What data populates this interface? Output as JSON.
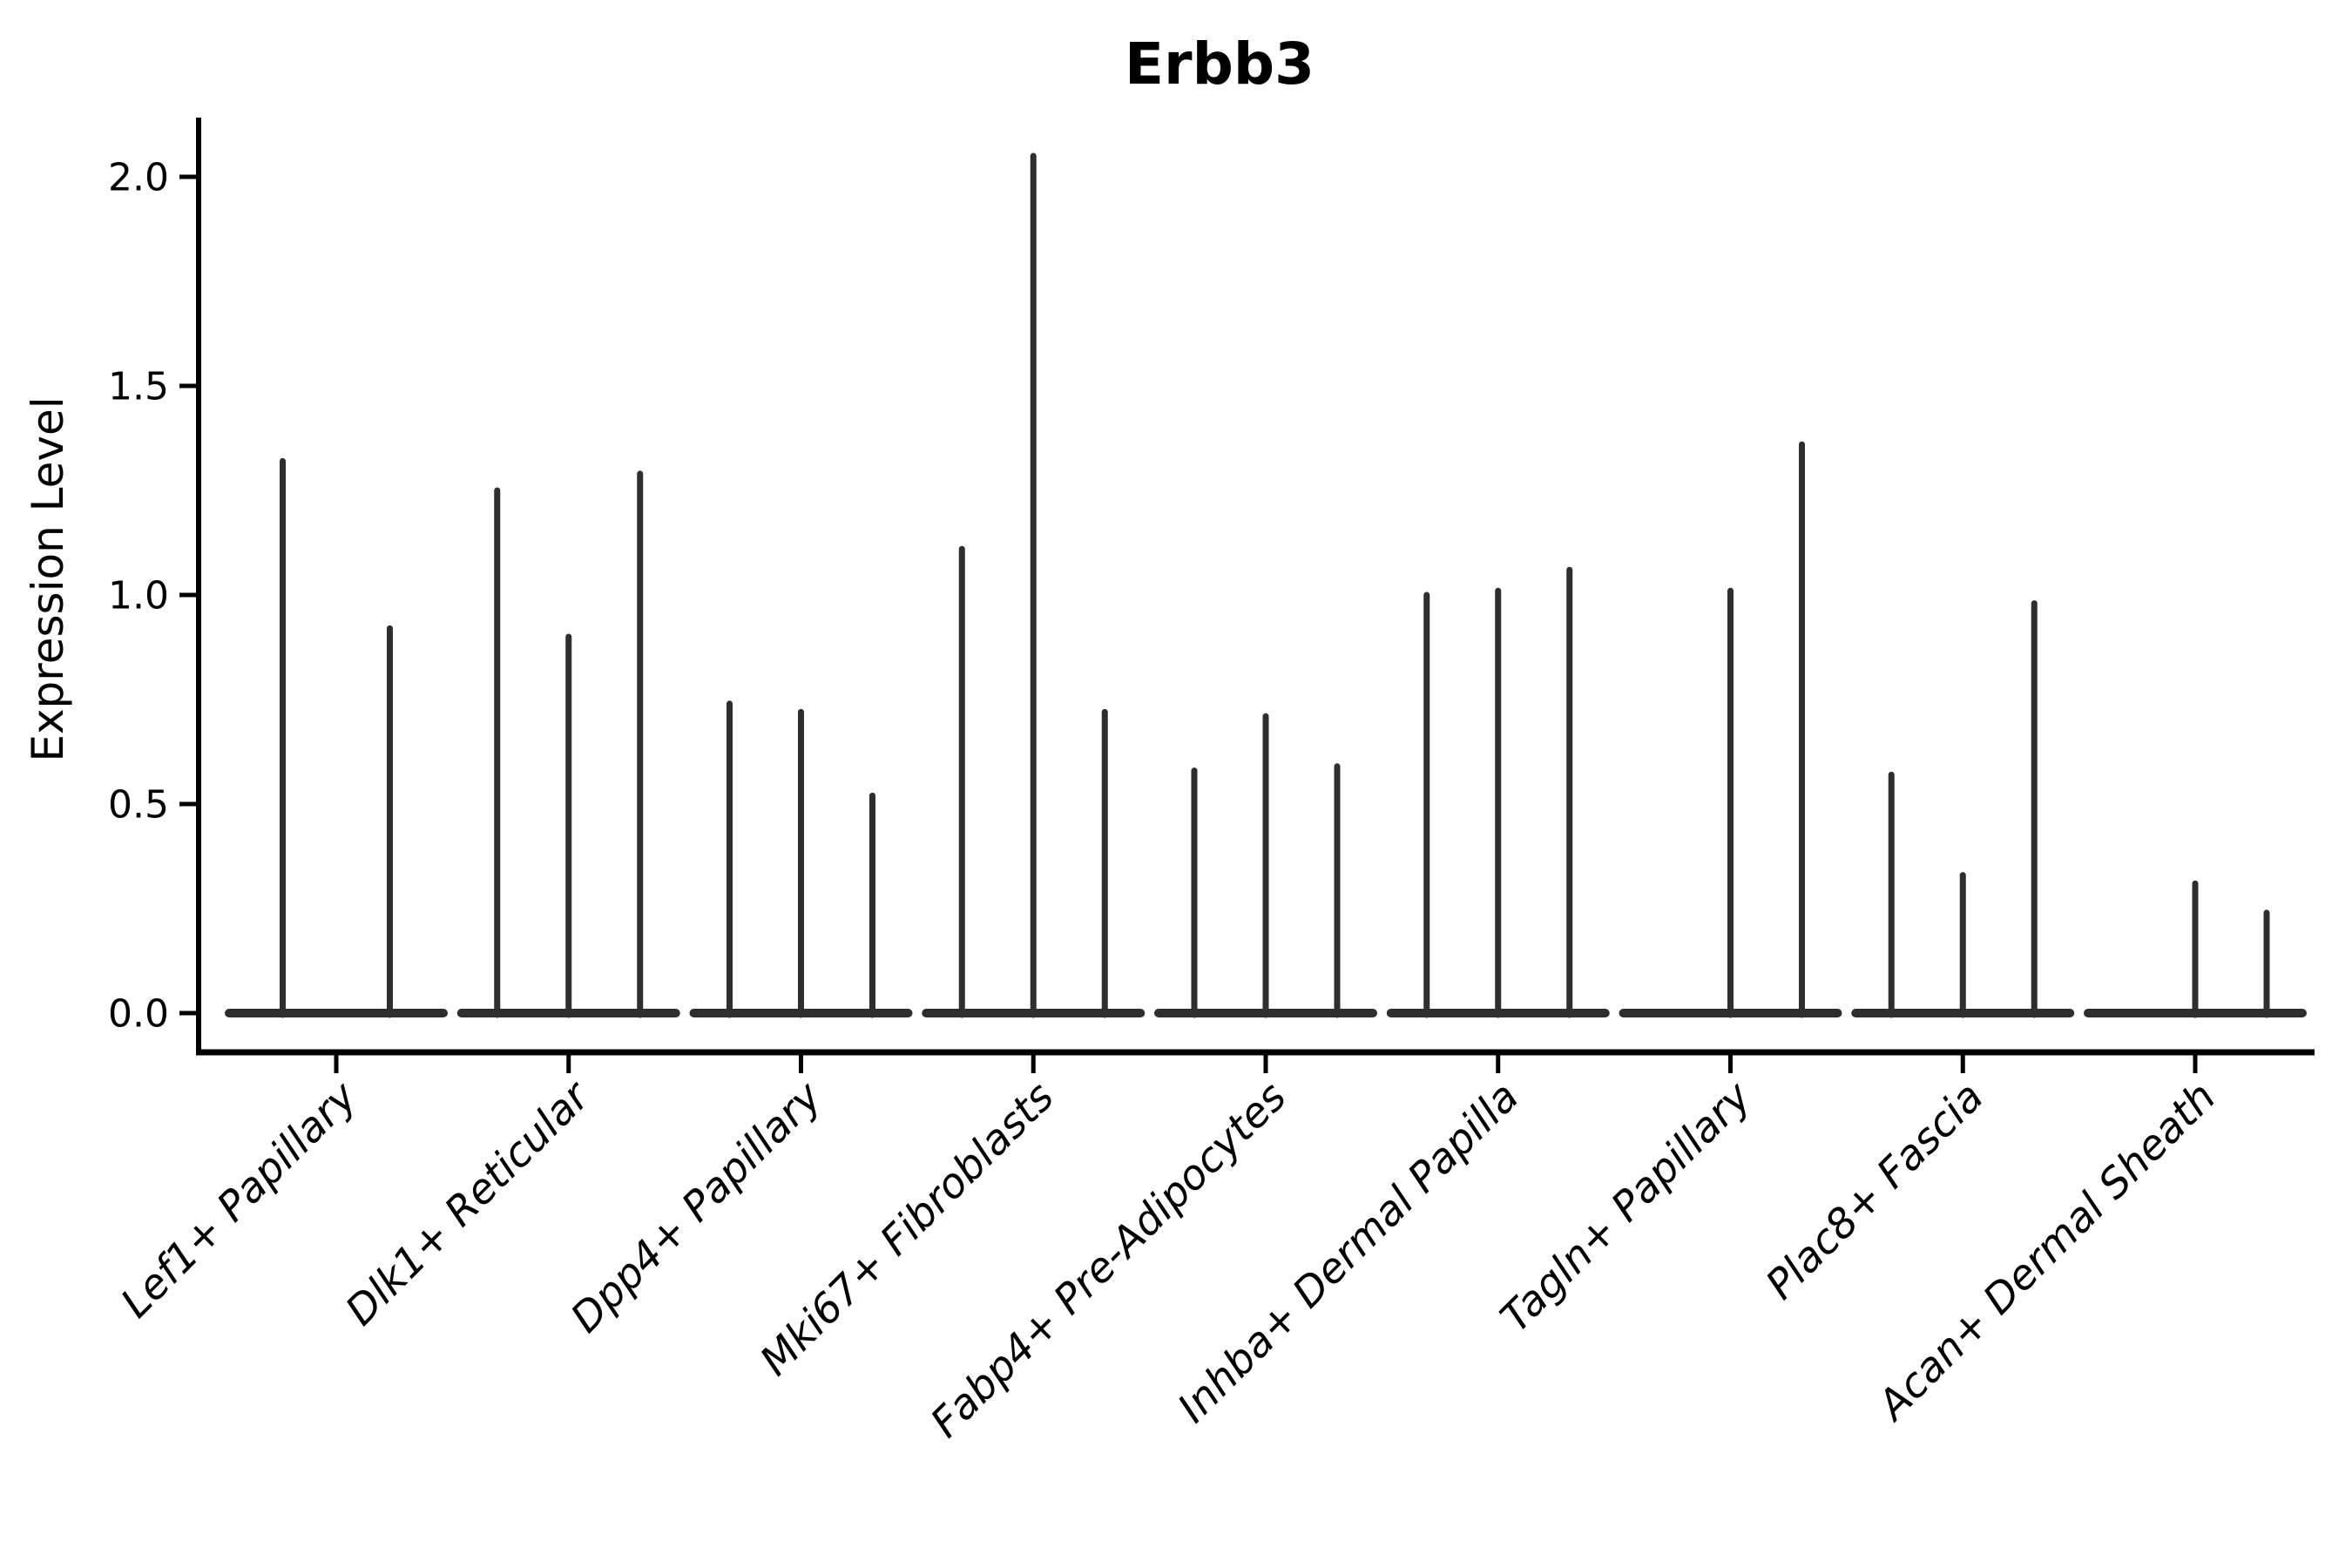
{
  "title": "Erbb3",
  "chart_data": {
    "type": "violin",
    "title": "Erbb3",
    "subtitle": "",
    "xlabel": "",
    "ylabel": "Expression Level",
    "grid": false,
    "legend_position": "none",
    "background": "#ffffff",
    "ylim": [
      -0.09,
      2.14
    ],
    "ytick_labels": [
      "0.0",
      "0.5",
      "1.0",
      "1.5",
      "2.0"
    ],
    "ytick_values": [
      0.0,
      0.5,
      1.0,
      1.5,
      2.0
    ],
    "categories": [
      "Lef1+ Papillary",
      "Dlk1+ Reticular",
      "Dpp4+ Papillary",
      "Mki67+ Fibroblasts",
      "Fabp4+ Pre-Adipocytes",
      "Inhba+ Dermal Papilla",
      "Tagln+ Papillary",
      "Plac8+ Fascia",
      "Acan+ Dermal Sheath"
    ],
    "groups": [
      {
        "category": "Lef1+ Papillary",
        "violin_max": [
          1.32,
          0.92
        ]
      },
      {
        "category": "Dlk1+ Reticular",
        "violin_max": [
          1.25,
          0.9,
          1.29
        ]
      },
      {
        "category": "Dpp4+ Papillary",
        "violin_max": [
          0.74,
          0.72,
          0.52
        ]
      },
      {
        "category": "Mki67+ Fibroblasts",
        "violin_max": [
          1.11,
          2.05,
          0.72
        ]
      },
      {
        "category": "Fabp4+ Pre-Adipocytes",
        "violin_max": [
          0.58,
          0.71,
          0.59
        ]
      },
      {
        "category": "Inhba+ Dermal Papilla",
        "violin_max": [
          1.0,
          1.01,
          1.06
        ]
      },
      {
        "category": "Tagln+ Papillary",
        "violin_max": [
          0.0,
          1.01,
          1.36
        ]
      },
      {
        "category": "Plac8+ Fascia",
        "violin_max": [
          0.57,
          0.33,
          0.98
        ]
      },
      {
        "category": "Acan+ Dermal Sheath",
        "violin_max": [
          0.0,
          0.31,
          0.24
        ]
      }
    ],
    "violin_note": "each violin is a near-flat density at 0 with a thin spike up to its max expression value; groups with a 0 entry show only the flat base for that violin",
    "colors": {
      "violin": "#2e2e2e",
      "axis": "#000000",
      "text": "#000000",
      "background": "#ffffff"
    }
  }
}
